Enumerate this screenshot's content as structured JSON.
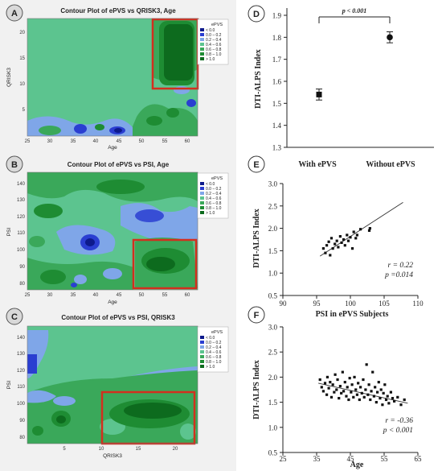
{
  "contour_palette": {
    "lt0": "#0d1a8c",
    "c0_02": "#2a3ed1",
    "c02_04": "#7fa6e8",
    "c04_06": "#5cc48f",
    "c06_08": "#3aa85a",
    "c08_10": "#1e8c33",
    "gt10": "#0d6b1e",
    "highlight": "#d32f1e"
  },
  "chart_data": [
    {
      "panel": "A",
      "type": "heatmap",
      "title": "Contour Plot of ePVS vs QRISK3, Age",
      "xlabel": "Age",
      "ylabel": "QRISK3",
      "xticks": [
        "25",
        "30",
        "35",
        "40",
        "45",
        "50",
        "55",
        "60"
      ],
      "yticks": [
        "20",
        "15",
        "10",
        "5"
      ],
      "xlim": [
        25,
        62
      ],
      "ylim": [
        0,
        23
      ],
      "legend_title": "ePVS",
      "legend": [
        "< 0.0",
        "0.0 – 0.2",
        "0.2 – 0.4",
        "0.4 – 0.6",
        "0.6 – 0.8",
        "0.8 – 1.0",
        "> 1.0"
      ]
    },
    {
      "panel": "B",
      "type": "heatmap",
      "title": "Contour Plot of ePVS vs PSI, Age",
      "xlabel": "Age",
      "ylabel": "PSI",
      "xticks": [
        "25",
        "30",
        "35",
        "40",
        "45",
        "50",
        "55",
        "60"
      ],
      "yticks": [
        "140",
        "130",
        "120",
        "110",
        "100",
        "90",
        "80"
      ],
      "xlim": [
        25,
        62
      ],
      "ylim": [
        75,
        145
      ],
      "legend_title": "ePVS",
      "legend": [
        "< 0.0",
        "0.0 – 0.2",
        "0.2 – 0.4",
        "0.4 – 0.6",
        "0.6 – 0.8",
        "0.8 – 1.0",
        "> 1.0"
      ]
    },
    {
      "panel": "C",
      "type": "heatmap",
      "title": "Contour Plot of ePVS vs PSI, QRISK3",
      "xlabel": "QRISK3",
      "ylabel": "PSI",
      "xticks": [
        "5",
        "10",
        "15",
        "20"
      ],
      "yticks": [
        "140",
        "130",
        "120",
        "110",
        "100",
        "90",
        "80"
      ],
      "xlim": [
        0,
        23
      ],
      "ylim": [
        75,
        145
      ],
      "legend_title": "ePVS",
      "legend": [
        "< 0.0",
        "0.0 – 0.2",
        "0.2 – 0.4",
        "0.4 – 0.6",
        "0.6 – 0.8",
        "0.8 – 1.0",
        "> 1.0"
      ]
    },
    {
      "panel": "D",
      "type": "scatter",
      "categories": [
        "With ePVS",
        "Without ePVS"
      ],
      "values": [
        1.54,
        1.8
      ],
      "errors": [
        0.025,
        0.025
      ],
      "ylabel": "DTI-ALPS Index",
      "ylim": [
        1.3,
        1.9
      ],
      "yticks": [
        "1.9",
        "1.8",
        "1.7",
        "1.6",
        "1.5",
        "1.4",
        "1.3"
      ],
      "annotation": "p < 0.001"
    },
    {
      "panel": "E",
      "type": "scatter",
      "xlabel": "PSI in ePVS Subjects",
      "ylabel": "DTI-ALPS Index",
      "xlim": [
        90,
        110
      ],
      "ylim": [
        0.5,
        3.0
      ],
      "xticks": [
        "90",
        "95",
        "100",
        "105",
        "110"
      ],
      "yticks": [
        "3.0",
        "2.5",
        "2.0",
        "1.5",
        "1.0",
        "0.5"
      ],
      "points": [
        [
          96.0,
          1.55
        ],
        [
          96.3,
          1.45
        ],
        [
          96.5,
          1.62
        ],
        [
          96.8,
          1.7
        ],
        [
          97.0,
          1.4
        ],
        [
          97.2,
          1.78
        ],
        [
          97.4,
          1.55
        ],
        [
          97.7,
          1.65
        ],
        [
          98.0,
          1.72
        ],
        [
          98.2,
          1.58
        ],
        [
          98.5,
          1.82
        ],
        [
          98.7,
          1.68
        ],
        [
          99.0,
          1.75
        ],
        [
          99.2,
          1.62
        ],
        [
          99.5,
          1.85
        ],
        [
          99.7,
          1.72
        ],
        [
          100.0,
          1.8
        ],
        [
          100.3,
          1.55
        ],
        [
          100.5,
          1.92
        ],
        [
          100.8,
          1.78
        ],
        [
          101.0,
          1.85
        ],
        [
          101.5,
          1.98
        ],
        [
          102.8,
          1.95
        ],
        [
          102.9,
          2.0
        ]
      ],
      "fit": [
        [
          95.5,
          1.38
        ],
        [
          107.8,
          2.58
        ]
      ],
      "stats": [
        "r = 0.22",
        "p =0.014"
      ]
    },
    {
      "panel": "F",
      "type": "scatter",
      "xlabel": "Age",
      "ylabel": "DTI-ALPS Index",
      "xlim": [
        25,
        65
      ],
      "ylim": [
        0.5,
        3.0
      ],
      "xticks": [
        "25",
        "35",
        "45",
        "55",
        "65"
      ],
      "yticks": [
        "3.0",
        "2.5",
        "2.0",
        "1.5",
        "1.0",
        "0.5"
      ],
      "points": [
        [
          36,
          1.95
        ],
        [
          36.5,
          1.8
        ],
        [
          37,
          1.72
        ],
        [
          37.5,
          1.88
        ],
        [
          38,
          1.65
        ],
        [
          38.2,
          2.0
        ],
        [
          38.6,
          1.78
        ],
        [
          39,
          1.9
        ],
        [
          39.4,
          1.6
        ],
        [
          39.8,
          1.85
        ],
        [
          40.2,
          1.7
        ],
        [
          40.5,
          2.05
        ],
        [
          40.9,
          1.75
        ],
        [
          41.2,
          1.95
        ],
        [
          41.6,
          1.58
        ],
        [
          42,
          1.82
        ],
        [
          42.3,
          1.68
        ],
        [
          42.7,
          2.1
        ],
        [
          43,
          1.72
        ],
        [
          43.4,
          1.9
        ],
        [
          43.8,
          1.62
        ],
        [
          44.1,
          1.8
        ],
        [
          44.5,
          1.55
        ],
        [
          44.8,
          1.98
        ],
        [
          45.2,
          1.7
        ],
        [
          45.5,
          1.85
        ],
        [
          45.9,
          1.6
        ],
        [
          46.2,
          2.0
        ],
        [
          46.6,
          1.75
        ],
        [
          47,
          1.65
        ],
        [
          47.3,
          1.88
        ],
        [
          47.7,
          1.55
        ],
        [
          48,
          1.8
        ],
        [
          48.4,
          1.68
        ],
        [
          48.8,
          1.95
        ],
        [
          49.1,
          1.6
        ],
        [
          49.5,
          1.75
        ],
        [
          49.8,
          2.25
        ],
        [
          50.2,
          1.65
        ],
        [
          50.5,
          1.85
        ],
        [
          50.9,
          1.55
        ],
        [
          51.2,
          1.72
        ],
        [
          51.6,
          2.1
        ],
        [
          52,
          1.62
        ],
        [
          52.3,
          1.8
        ],
        [
          52.7,
          1.5
        ],
        [
          53,
          1.7
        ],
        [
          53.4,
          1.9
        ],
        [
          53.8,
          1.58
        ],
        [
          54.1,
          1.75
        ],
        [
          54.5,
          1.45
        ],
        [
          54.8,
          1.68
        ],
        [
          55.2,
          1.85
        ],
        [
          55.6,
          1.55
        ],
        [
          56,
          1.62
        ],
        [
          56.4,
          1.48
        ],
        [
          57,
          1.7
        ],
        [
          57.5,
          1.58
        ],
        [
          58,
          1.52
        ],
        [
          59,
          1.6
        ],
        [
          60,
          1.45
        ],
        [
          61,
          1.55
        ]
      ],
      "fit": [
        [
          35.5,
          1.88
        ],
        [
          62,
          1.48
        ]
      ],
      "stats": [
        "r = -0.36",
        "p < 0.001"
      ]
    }
  ]
}
